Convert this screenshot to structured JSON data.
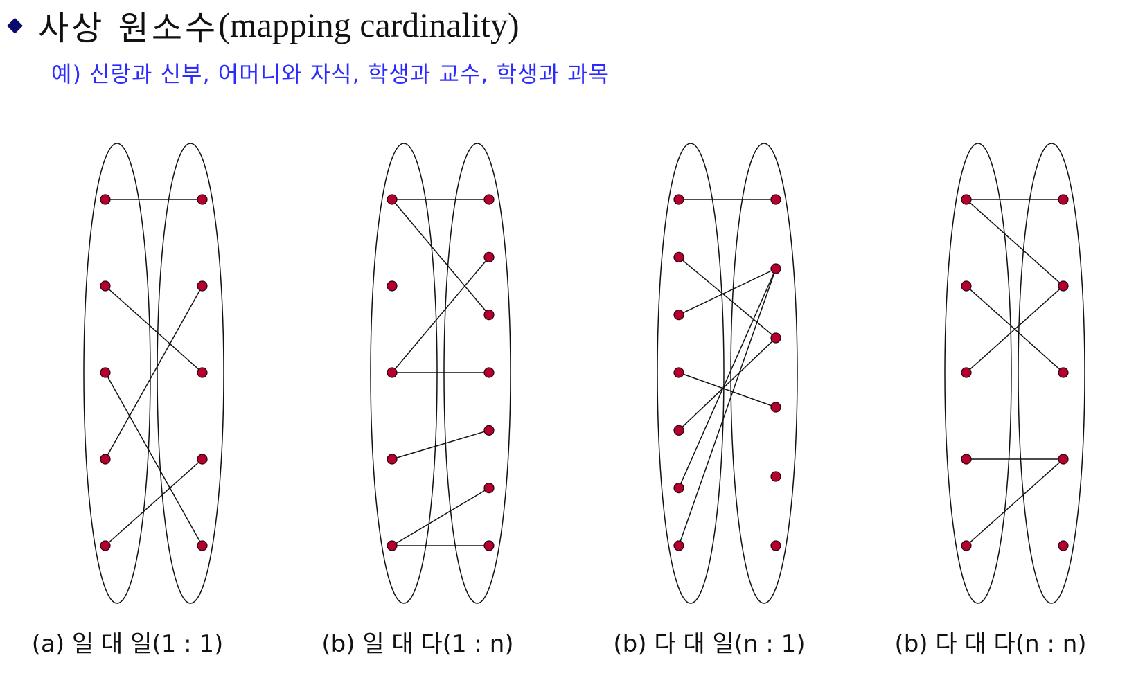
{
  "header": {
    "bullet": "◆",
    "title_korean": "사상 원소수",
    "title_paren": "(mapping cardinality)",
    "example": "예) 신랑과 신부, 어머니와 자식, 학생과 교수, 학생과 과목"
  },
  "colors": {
    "bullet": "#0b0b6b",
    "example_text": "#2b2bff",
    "node_fill": "#b3002d",
    "node_stroke": "#2a0010",
    "line": "#111111"
  },
  "diagrams": [
    {
      "id": "one-to-one",
      "caption": "(a) 일 대 일(1 : 1)",
      "left_nodes": 5,
      "right_nodes": 5,
      "edges": [
        [
          0,
          0
        ],
        [
          1,
          2
        ],
        [
          2,
          4
        ],
        [
          3,
          1
        ],
        [
          4,
          3
        ]
      ]
    },
    {
      "id": "one-to-many",
      "caption": "(b) 일 대 다(1 : n)",
      "left_nodes": 5,
      "right_nodes": 7,
      "edges": [
        [
          0,
          0
        ],
        [
          0,
          2
        ],
        [
          2,
          1
        ],
        [
          2,
          3
        ],
        [
          3,
          4
        ],
        [
          4,
          5
        ],
        [
          4,
          6
        ]
      ]
    },
    {
      "id": "many-to-one",
      "caption": "(b) 다 대 일(n : 1)",
      "left_nodes": 7,
      "right_nodes": 6,
      "edges": [
        [
          0,
          0
        ],
        [
          1,
          2
        ],
        [
          2,
          1
        ],
        [
          3,
          3
        ],
        [
          4,
          2
        ],
        [
          5,
          1
        ],
        [
          6,
          1
        ]
      ]
    },
    {
      "id": "many-to-many",
      "caption": "(b) 다 대 다(n : n)",
      "left_nodes": 5,
      "right_nodes": 5,
      "edges": [
        [
          0,
          0
        ],
        [
          0,
          1
        ],
        [
          1,
          2
        ],
        [
          2,
          1
        ],
        [
          3,
          3
        ],
        [
          4,
          3
        ]
      ]
    }
  ]
}
